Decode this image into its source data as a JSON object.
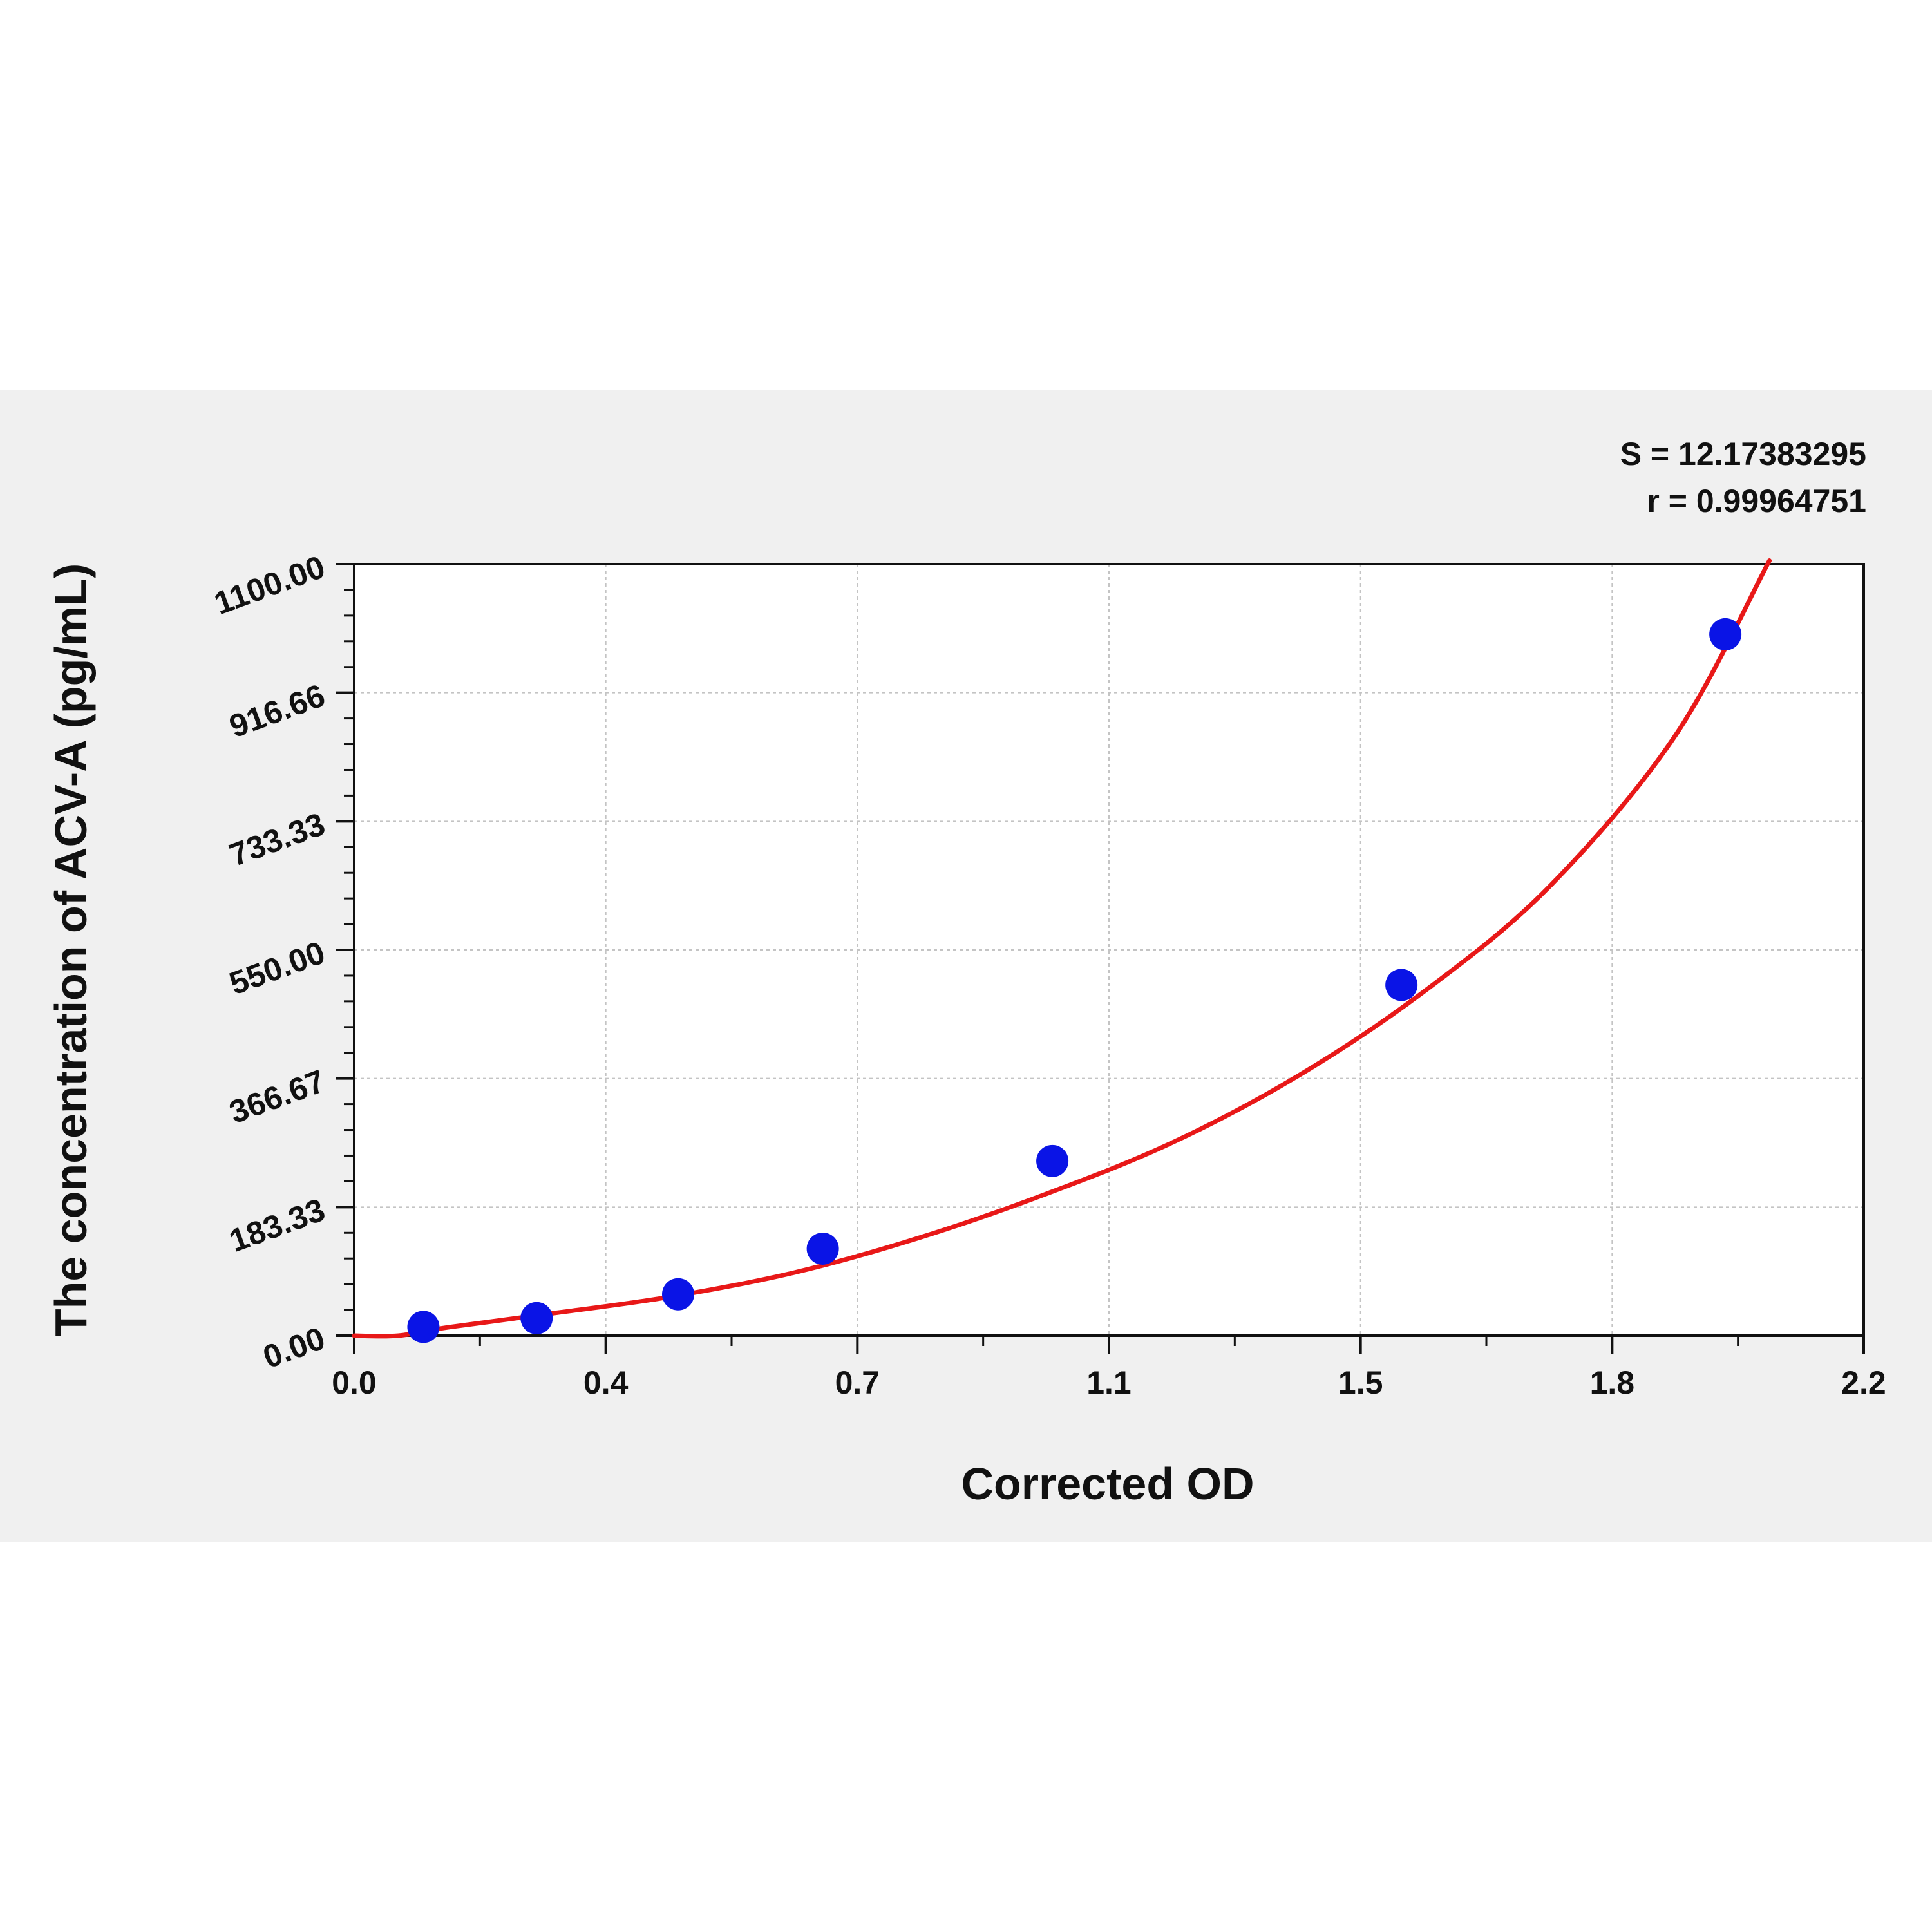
{
  "chart_data": {
    "type": "scatter",
    "xlabel": "Corrected OD",
    "ylabel": "The concentration of ACV-A (pg/mL)",
    "xlim": [
      0,
      2.4
    ],
    "ylim": [
      0,
      1100
    ],
    "x_ticks": [
      "0.0",
      "0.4",
      "0.7",
      "1.1",
      "1.5",
      "1.8",
      "2.2"
    ],
    "y_ticks": [
      "0.00",
      "183.33",
      "366.67",
      "550.00",
      "733.33",
      "916.66",
      "1100.00"
    ],
    "grid": true,
    "stats": {
      "s": "S = 12.17383295",
      "r": "r = 0.99964751"
    },
    "series": [
      {
        "kind": "points",
        "color": "#0a14e6",
        "x": [
          0.11,
          0.29,
          0.515,
          0.745,
          1.11,
          1.665,
          2.18
        ],
        "y": [
          12.5,
          25,
          59,
          124,
          249,
          500,
          1000
        ]
      },
      {
        "kind": "fit-curve",
        "color": "#e81818",
        "x": [
          0.0,
          0.07,
          0.15,
          0.3,
          0.5,
          0.7,
          0.9,
          1.1,
          1.3,
          1.5,
          1.7,
          1.9,
          2.1,
          2.25
        ],
        "y": [
          0,
          0,
          12,
          30,
          55,
          90,
          140,
          202,
          275,
          370,
          490,
          640,
          855,
          1105
        ]
      }
    ]
  }
}
